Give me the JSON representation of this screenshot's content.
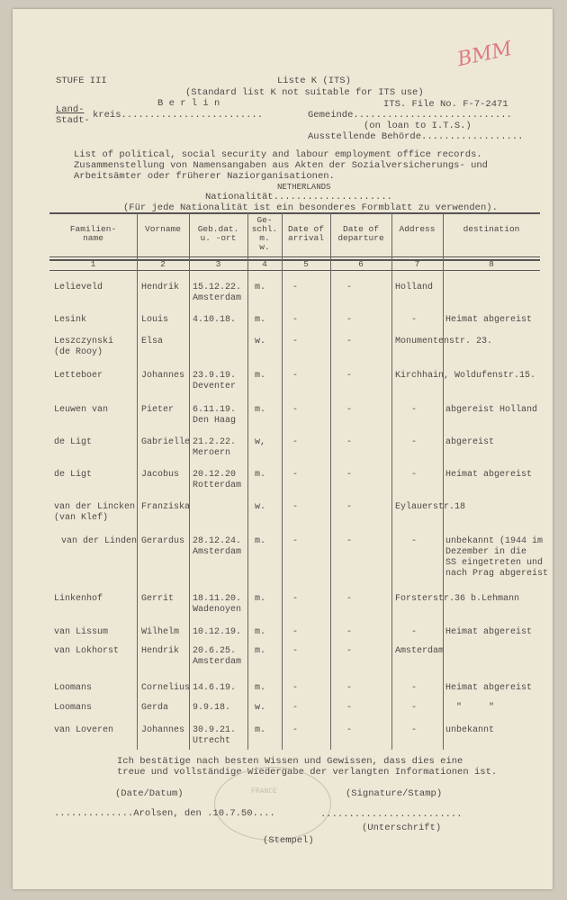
{
  "header": {
    "stufe": "STUFE III",
    "title": "Liste K (ITS)",
    "subtitle": "(Standard list K not suitable for ITS use)",
    "land_label": "Land-",
    "stadt_label": "Stadt-",
    "kreis_label": "kreis.........................",
    "kreis_value": "B e r l i n",
    "file_no": "ITS. File No. F-7-2471",
    "gemeinde_label": "Gemeinde............................",
    "on_loan": "(on loan to I.T.S.)",
    "behoerde_label": "Ausstellende Behörde..................",
    "handwritten_mark": "BMM"
  },
  "description": [
    "List of political, social security and labour employment office records.",
    "Zusammenstellung von Namensangaben aus Akten der Sozialversicherungs- und",
    "Arbeitsämter oder früherer Naziorganisationen."
  ],
  "nationality": {
    "label": "Nationalität.....................",
    "value": "NETHERLANDS",
    "note": "(Für jede Nationalität ist ein besonderes Formblatt zu verwenden)."
  },
  "table": {
    "headers": [
      "Familien-\nname",
      "Vorname",
      "Geb.dat.\nu. -ort",
      "Ge-\nschl.\nm.\nw.",
      "Date of\narrival",
      "Date of\ndeparture",
      "Address",
      "destination"
    ],
    "numbers": [
      "1",
      "2",
      "3",
      "4",
      "5",
      "6",
      "7",
      "8"
    ],
    "rows": [
      {
        "family": "Lelieveld",
        "first": "Hendrik",
        "birth": "15.12.22.\nAmsterdam",
        "sex": "m.",
        "arrival": "-",
        "departure": "-",
        "address": "Holland",
        "destination": ""
      },
      {
        "family": "Lesink",
        "first": "Louis",
        "birth": "4.10.18.",
        "sex": "m.",
        "arrival": "-",
        "departure": "-",
        "address": "   -",
        "destination": "Heimat abgereist"
      },
      {
        "family": "Leszczynski\n(de Rooy)",
        "first": "Elsa",
        "birth": "",
        "sex": "w.",
        "arrival": "-",
        "departure": "-",
        "address": "Monumentenstr. 23.",
        "destination": ""
      },
      {
        "family": "Letteboer",
        "first": "Johannes",
        "birth": "23.9.19.\nDeventer",
        "sex": "m.",
        "arrival": "-",
        "departure": "-",
        "address": "Kirchhain, Woldufenstr.15.",
        "destination": ""
      },
      {
        "family": "Leuwen van",
        "first": "Pieter",
        "birth": "6.11.19.\nDen Haag",
        "sex": "m.",
        "arrival": "-",
        "departure": "-",
        "address": "   -",
        "destination": "abgereist Holland"
      },
      {
        "family": "de Ligt",
        "first": "Gabrielle",
        "birth": "21.2.22.\nMeroern",
        "sex": "w,",
        "arrival": "-",
        "departure": "-",
        "address": "   -",
        "destination": "abgereist"
      },
      {
        "family": "de Ligt",
        "first": "Jacobus",
        "birth": "20.12.20\nRotterdam",
        "sex": "m.",
        "arrival": "-",
        "departure": "-",
        "address": "   -",
        "destination": "Heimat abgereist"
      },
      {
        "family": "van der Lincken\n(van Klef)",
        "first": "Franziska",
        "birth": "",
        "sex": "w.",
        "arrival": "-",
        "departure": "-",
        "address": "Eylauerstr.18",
        "destination": ""
      },
      {
        "family": "van der Linden",
        "first": "Gerardus",
        "birth": "28.12.24.\nAmsterdam",
        "sex": "m.",
        "arrival": "-",
        "departure": "-",
        "address": "   -",
        "destination": "unbekannt (1944 im\nDezember in die\nSS eingetreten und\nnach Prag abgereist"
      },
      {
        "family": "Linkenhof",
        "first": "Gerrit",
        "birth": "18.11.20.\nWadenoyen",
        "sex": "m.",
        "arrival": "-",
        "departure": "-",
        "address": "Forsterstr.36 b.Lehmann",
        "destination": ""
      },
      {
        "family": "van Lissum",
        "first": "Wilhelm",
        "birth": "10.12.19.",
        "sex": "m.",
        "arrival": "-",
        "departure": "-",
        "address": "   -",
        "destination": "Heimat abgereist"
      },
      {
        "family": "van Lokhorst",
        "first": "Hendrik",
        "birth": "20.6.25.\nAmsterdam",
        "sex": "m.",
        "arrival": "-",
        "departure": "-",
        "address": "Amsterdam",
        "destination": ""
      },
      {
        "family": "Loomans",
        "first": "Cornelius",
        "birth": "14.6.19.",
        "sex": "m.",
        "arrival": "-",
        "departure": "-",
        "address": "   -",
        "destination": "Heimat abgereist"
      },
      {
        "family": "Loomans",
        "first": "Gerda",
        "birth": "9.9.18.",
        "sex": "w.",
        "arrival": "-",
        "departure": "-",
        "address": "   -",
        "destination": "  \"     \""
      },
      {
        "family": "van Loveren",
        "first": "Johannes",
        "birth": "30.9.21.\nUtrecht",
        "sex": "m.",
        "arrival": "-",
        "departure": "-",
        "address": "   -",
        "destination": "unbekannt"
      }
    ]
  },
  "footer": {
    "confirm_1": "Ich bestätige nach besten Wissen und Gewissen, dass dies eine",
    "confirm_2": "treue und vollständige Wiedergabe der verlangten Informationen ist.",
    "date_label": "(Date/Datum)",
    "signature_label": "(Signature/Stamp)",
    "place_date": "..............Arolsen, den .10.7.50....",
    "signature_line": ".........................",
    "unterschrift": "(Unterschrift)",
    "stempel": "(Stempel)",
    "stamp_text": "FRANCE"
  }
}
